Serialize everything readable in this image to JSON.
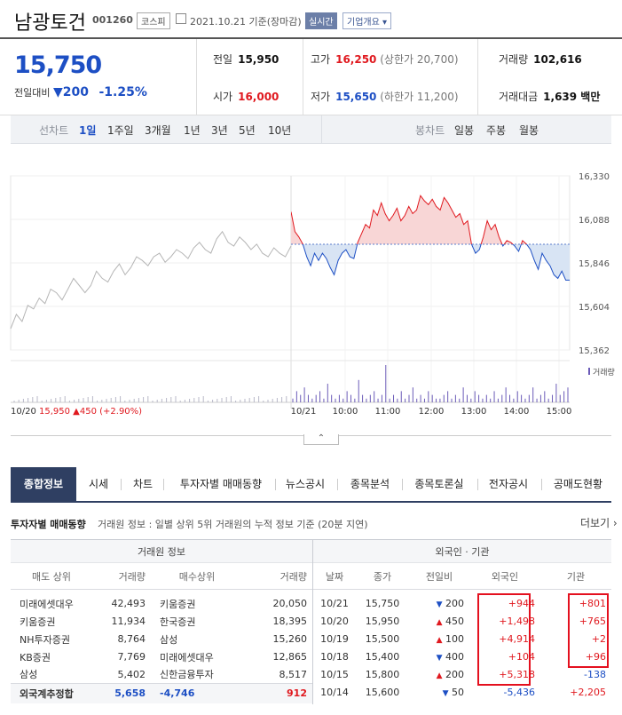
{
  "header": {
    "stock_name": "남광토건",
    "stock_code": "001260",
    "market": "코스피",
    "date": "2021.10.21 기준(장마감)",
    "realtime_label": "실시간",
    "company_overview": "기업개요 ▾"
  },
  "price": {
    "current": "15,750",
    "change_label": "전일대비",
    "change_arrow": "▼",
    "change_value": "200",
    "change_rate": "-1.25%"
  },
  "info": {
    "prev_label": "전일",
    "prev": "15,950",
    "high_label": "고가",
    "high": "16,250",
    "upper_limit": "(상한가 20,700)",
    "volume_label": "거래량",
    "volume": "102,616",
    "open_label": "시가",
    "open": "16,000",
    "low_label": "저가",
    "low": "15,650",
    "lower_limit": "(하한가 11,200)",
    "amount_label": "거래대금",
    "amount": "1,639 백만"
  },
  "period_bar": {
    "line_label": "선차트",
    "line_options": [
      "1일",
      "1주일",
      "3개월",
      "1년",
      "3년",
      "5년",
      "10년"
    ],
    "selected": "1일",
    "candle_label": "봉차트",
    "candle_options": [
      "일봉",
      "주봉",
      "월봉"
    ]
  },
  "chart_data": {
    "type": "line",
    "title": "",
    "y_ticks": [
      "16,330",
      "16,088",
      "15,846",
      "15,604",
      "15,362"
    ],
    "ylim": [
      15362,
      16330
    ],
    "baseline": 15950,
    "x_ticks": [
      "10/21",
      "10:00",
      "11:00",
      "12:00",
      "13:00",
      "14:00",
      "15:00"
    ],
    "prev_day_label": "10/20",
    "prev_day_close": "15,950",
    "prev_day_change": "▲450",
    "prev_day_rate": "(+2.90%)",
    "volume_legend": "거래량",
    "prev_day_series": [
      15480,
      15560,
      15520,
      15610,
      15590,
      15650,
      15620,
      15700,
      15680,
      15640,
      15700,
      15760,
      15720,
      15680,
      15720,
      15800,
      15760,
      15740,
      15800,
      15840,
      15780,
      15820,
      15880,
      15860,
      15830,
      15880,
      15900,
      15850,
      15880,
      15920,
      15900,
      15870,
      15930,
      15960,
      15920,
      15900,
      15980,
      16020,
      15960,
      15940,
      15990,
      15960,
      15920,
      15950,
      15900,
      15880,
      15930,
      15900,
      15880,
      15940
    ],
    "today_series": [
      16130,
      16020,
      15990,
      15950,
      15880,
      15830,
      15900,
      15860,
      15900,
      15870,
      15820,
      15780,
      15860,
      15900,
      15920,
      15880,
      15870,
      15960,
      16010,
      16060,
      16040,
      16140,
      16110,
      16180,
      16120,
      16080,
      16110,
      16150,
      16080,
      16110,
      16160,
      16120,
      16140,
      16220,
      16190,
      16170,
      16200,
      16160,
      16140,
      16210,
      16180,
      16140,
      16100,
      16120,
      16060,
      16080,
      15950,
      15900,
      15920,
      15990,
      16080,
      16030,
      16060,
      15990,
      15940,
      15970,
      15960,
      15940,
      15910,
      15970,
      15950,
      15920,
      15860,
      15810,
      15900,
      15860,
      15830,
      15780,
      15760,
      15800,
      15750,
      15750
    ],
    "today_volume": [
      1,
      3,
      2,
      4,
      2,
      1,
      2,
      3,
      1,
      5,
      2,
      1,
      2,
      1,
      3,
      2,
      1,
      6,
      2,
      1,
      2,
      3,
      1,
      2,
      10,
      1,
      2,
      1,
      3,
      1,
      2,
      4,
      1,
      2,
      1,
      3,
      2,
      1,
      1,
      2,
      3,
      1,
      2,
      1,
      4,
      2,
      1,
      3,
      2,
      1,
      2,
      1,
      3,
      1,
      2,
      4,
      2,
      1,
      3,
      2,
      1,
      2,
      4,
      1,
      2,
      3,
      1,
      2,
      5,
      2,
      3,
      4
    ]
  },
  "tabs": [
    "종합정보",
    "시세",
    "차트",
    "투자자별 매매동향",
    "뉴스공시",
    "종목분석",
    "종목토론실",
    "전자공시",
    "공매도현황"
  ],
  "investor": {
    "title": "투자자별 매매동향",
    "description": "거래원 정보 : 일별 상위 5위 거래원의 누적 정보 기준 (20분 지연)",
    "more": "더보기 ›",
    "broker_header": "거래원 정보",
    "broker_cols": [
      "매도 상위",
      "거래량",
      "매수상위",
      "거래량"
    ],
    "brokers": [
      {
        "sell": "미래에셋대우",
        "sell_vol": "42,493",
        "buy": "키움증권",
        "buy_vol": "20,050"
      },
      {
        "sell": "키움증권",
        "sell_vol": "11,934",
        "buy": "한국증권",
        "buy_vol": "18,395"
      },
      {
        "sell": "NH투자증권",
        "sell_vol": "8,764",
        "buy": "삼성",
        "buy_vol": "15,260"
      },
      {
        "sell": "KB증권",
        "sell_vol": "7,769",
        "buy": "미래에셋대우",
        "buy_vol": "12,865"
      },
      {
        "sell": "삼성",
        "sell_vol": "5,402",
        "buy": "신한금융투자",
        "buy_vol": "8,517"
      }
    ],
    "foreign_sum": {
      "label": "외국계추정합",
      "sell": "5,658",
      "buy": "-4,746",
      "net": "912"
    },
    "fi_header": "외국인 · 기관",
    "fi_cols": [
      "날짜",
      "종가",
      "전일비",
      "외국인",
      "기관"
    ],
    "fi_rows": [
      {
        "date": "10/21",
        "close": "15,750",
        "dir": "down",
        "arrow": "▼",
        "chg": "200",
        "foreign": "+944",
        "inst": "+801"
      },
      {
        "date": "10/20",
        "close": "15,950",
        "dir": "up",
        "arrow": "▲",
        "chg": "450",
        "foreign": "+1,498",
        "inst": "+765"
      },
      {
        "date": "10/19",
        "close": "15,500",
        "dir": "up",
        "arrow": "▲",
        "chg": "100",
        "foreign": "+4,914",
        "inst": "+2"
      },
      {
        "date": "10/18",
        "close": "15,400",
        "dir": "down",
        "arrow": "▼",
        "chg": "400",
        "foreign": "+104",
        "inst": "+96"
      },
      {
        "date": "10/15",
        "close": "15,800",
        "dir": "up",
        "arrow": "▲",
        "chg": "200",
        "foreign": "+5,318",
        "inst": "-138"
      },
      {
        "date": "10/14",
        "close": "15,600",
        "dir": "down",
        "arrow": "▼",
        "chg": "50",
        "foreign": "-5,436",
        "inst": "+2,205"
      }
    ]
  },
  "colors": {
    "up": "#e0191f",
    "down": "#1d4fc4",
    "prev_line": "#b5b5b5",
    "navy": "#2f3f62",
    "highlight": "#e4101e"
  }
}
